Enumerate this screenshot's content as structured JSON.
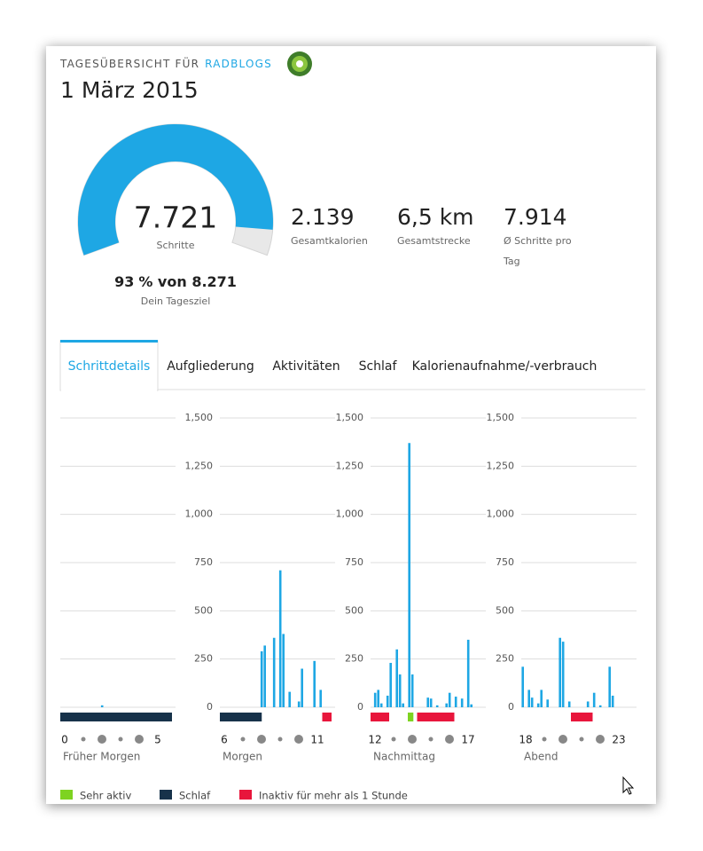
{
  "header": {
    "title": "TAGESÜBERSICHT FÜR",
    "user": "RADBLOGS",
    "date": "1 März 2015"
  },
  "summary": {
    "steps": "7.721",
    "steps_label": "Schritte",
    "percent": 93,
    "goal_text": "% von 8.271",
    "goal_label": "Dein Tagesziel",
    "stats": [
      {
        "value": "2.139",
        "label": "Gesamtkalorien"
      },
      {
        "value": "6,5 km",
        "label": "Gesamtstrecke"
      },
      {
        "value": "7.914",
        "label": "Ø Schritte pro Tag"
      }
    ]
  },
  "tabs": [
    "Schrittdetails",
    "Aufgliederung",
    "Aktivitäten",
    "Schlaf",
    "Kalorienaufnahme/-verbrauch"
  ],
  "active_tab": 0,
  "legend": [
    {
      "name": "Sehr aktiv",
      "color": "#7ed321"
    },
    {
      "name": "Schlaf",
      "color": "#17324a"
    },
    {
      "name": "Inaktiv für mehr als 1 Stunde",
      "color": "#e8163c"
    }
  ],
  "chart_data": [
    {
      "type": "histogram",
      "xlabel": "Früher Morgen",
      "color": "#1ea7e4",
      "bins": [
        0,
        10,
        20,
        30,
        40,
        50,
        60,
        70,
        80,
        90,
        100,
        110,
        120,
        130,
        140,
        150,
        160,
        170,
        180,
        190,
        200,
        210,
        220,
        230,
        240,
        250,
        260,
        270,
        280,
        290,
        300,
        310,
        320,
        330,
        340,
        350,
        360
      ],
      "values": [
        0,
        0,
        0,
        0,
        0,
        0,
        0,
        0,
        0,
        0,
        0,
        0,
        0,
        10,
        0,
        0,
        0,
        0,
        0,
        0,
        0,
        0,
        0,
        0,
        0,
        0,
        0,
        0,
        0,
        0,
        0,
        0,
        0,
        0,
        0,
        0
      ],
      "xlim": [
        0,
        360
      ],
      "xticks": [
        0,
        {
          "value": 300,
          "label": "5"
        }
      ],
      "ylim": [
        0,
        1500
      ],
      "yticks": [
        0,
        250,
        500,
        750,
        {
          "value": 1000,
          "label": "1,000"
        },
        {
          "value": 1250,
          "label": "1,250"
        },
        {
          "value": 1500,
          "label": "1,500"
        }
      ],
      "ytick_labels": false,
      "grid": true,
      "segments": [
        {
          "start": 0,
          "end": 360,
          "kind": 1
        }
      ]
    },
    {
      "type": "histogram",
      "xlabel": "Morgen",
      "color": "#1ea7e4",
      "bins": [
        360,
        370,
        380,
        390,
        400,
        410,
        420,
        430,
        440,
        450,
        460,
        470,
        480,
        490,
        500,
        510,
        520,
        530,
        540,
        550,
        560,
        570,
        580,
        590,
        600,
        610,
        620,
        630,
        640,
        650,
        660,
        670,
        680,
        690,
        700,
        710,
        720
      ],
      "values": [
        0,
        0,
        0,
        0,
        0,
        0,
        0,
        0,
        0,
        0,
        0,
        0,
        0,
        290,
        320,
        0,
        0,
        360,
        0,
        710,
        380,
        0,
        80,
        0,
        0,
        30,
        200,
        0,
        0,
        0,
        240,
        0,
        90,
        0,
        0,
        0
      ],
      "xlim": [
        360,
        720
      ],
      "xticks": [
        {
          "value": 360,
          "label": "6"
        },
        {
          "value": 660,
          "label": "11"
        }
      ],
      "ylim": [
        0,
        1500
      ],
      "yticks": [
        0,
        250,
        500,
        750,
        {
          "value": 1000,
          "label": "1,000"
        },
        {
          "value": 1250,
          "label": "1,250"
        },
        {
          "value": 1500,
          "label": "1,500"
        }
      ],
      "ytick_labels": true,
      "grid": true,
      "segments": [
        {
          "start": 360,
          "end": 495,
          "kind": 1
        },
        {
          "start": 690,
          "end": 720,
          "kind": 2
        }
      ]
    },
    {
      "type": "histogram",
      "xlabel": "Nachmittag",
      "color": "#1ea7e4",
      "bins": [
        720,
        730,
        740,
        750,
        760,
        770,
        780,
        790,
        800,
        810,
        820,
        830,
        840,
        850,
        860,
        870,
        880,
        890,
        900,
        910,
        920,
        930,
        940,
        950,
        960,
        970,
        980,
        990,
        1000,
        1010,
        1020,
        1030,
        1040,
        1050,
        1060,
        1070,
        1080
      ],
      "values": [
        0,
        75,
        90,
        20,
        0,
        60,
        230,
        0,
        300,
        170,
        20,
        0,
        1370,
        170,
        0,
        0,
        0,
        0,
        50,
        45,
        0,
        10,
        0,
        0,
        20,
        75,
        0,
        55,
        0,
        45,
        0,
        350,
        15,
        0,
        0,
        0
      ],
      "xlim": [
        720,
        1080
      ],
      "xticks": [
        {
          "value": 720,
          "label": "12"
        },
        {
          "value": 1020,
          "label": "17"
        }
      ],
      "ylim": [
        0,
        1500
      ],
      "yticks": [
        0,
        250,
        500,
        750,
        {
          "value": 1000,
          "label": "1,000"
        },
        {
          "value": 1250,
          "label": "1,250"
        },
        {
          "value": 1500,
          "label": "1,500"
        }
      ],
      "ytick_labels": true,
      "grid": true,
      "segments": [
        {
          "start": 720,
          "end": 780,
          "kind": 2
        },
        {
          "start": 840,
          "end": 858,
          "kind": 0
        },
        {
          "start": 870,
          "end": 990,
          "kind": 2
        }
      ]
    },
    {
      "type": "histogram",
      "xlabel": "Abend",
      "color": "#1ea7e4",
      "bins": [
        1080,
        1090,
        1100,
        1110,
        1120,
        1130,
        1140,
        1150,
        1160,
        1170,
        1180,
        1190,
        1200,
        1210,
        1220,
        1230,
        1240,
        1250,
        1260,
        1270,
        1280,
        1290,
        1300,
        1310,
        1320,
        1330,
        1340,
        1350,
        1360,
        1370,
        1380,
        1390,
        1400,
        1410,
        1420,
        1430,
        1440
      ],
      "values": [
        210,
        0,
        90,
        50,
        0,
        20,
        90,
        0,
        40,
        0,
        0,
        0,
        360,
        340,
        0,
        30,
        0,
        0,
        0,
        0,
        0,
        30,
        0,
        75,
        0,
        10,
        0,
        0,
        210,
        60,
        0,
        0,
        0,
        0,
        0,
        0
      ],
      "xlim": [
        1080,
        1440
      ],
      "xticks": [
        {
          "value": 1080,
          "label": "18"
        },
        {
          "value": 1380,
          "label": "23"
        }
      ],
      "ylim": [
        0,
        1500
      ],
      "yticks": [
        0,
        250,
        500,
        750,
        {
          "value": 1000,
          "label": "1,000"
        },
        {
          "value": 1250,
          "label": "1,250"
        },
        {
          "value": 1500,
          "label": "1,500"
        }
      ],
      "ytick_labels": true,
      "grid": true,
      "segments": [
        {
          "start": 1240,
          "end": 1310,
          "kind": 2
        }
      ]
    }
  ]
}
